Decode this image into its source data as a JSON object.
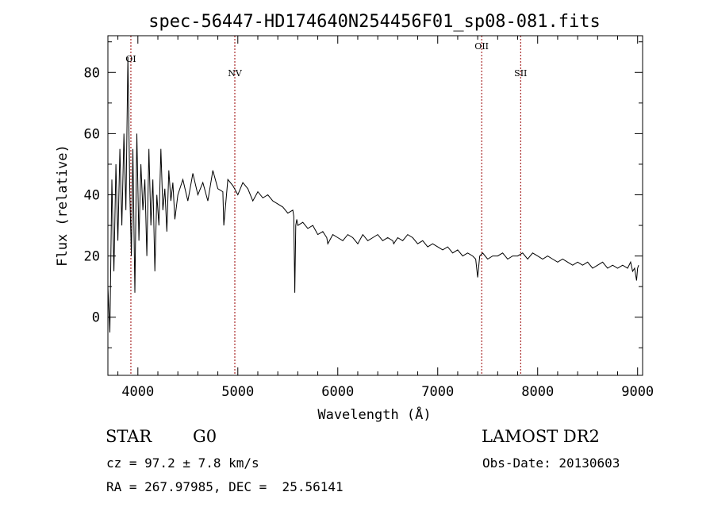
{
  "chart_data": {
    "type": "line",
    "title": "spec-56447-HD174640N254456F01_sp08-081.fits",
    "xlabel": "Wavelength (Å)",
    "ylabel": "Flux (relative)",
    "xlim": [
      3700,
      9050
    ],
    "ylim": [
      -19,
      92
    ],
    "xticks": [
      4000,
      5000,
      6000,
      7000,
      8000,
      9000
    ],
    "yticks": [
      0,
      20,
      40,
      60,
      80
    ],
    "grid": false,
    "line_color": "#000000",
    "marker_color": "#990000",
    "line_markers": [
      {
        "label": "OI",
        "wavelength": 3930
      },
      {
        "label": "NV",
        "wavelength": 4970
      },
      {
        "label": "OII",
        "wavelength": 7440
      },
      {
        "label": "SII",
        "wavelength": 7830
      }
    ],
    "series": [
      {
        "x": [
          3700,
          3720,
          3740,
          3760,
          3780,
          3800,
          3820,
          3840,
          3860,
          3880,
          3900,
          3920,
          3935,
          3950,
          3970,
          3990,
          4010,
          4030,
          4050,
          4070,
          4090,
          4110,
          4130,
          4150,
          4170,
          4190,
          4210,
          4230,
          4250,
          4270,
          4290,
          4310,
          4330,
          4350,
          4370,
          4400,
          4450,
          4500,
          4550,
          4600,
          4650,
          4700,
          4750,
          4800,
          4850,
          4860,
          4900,
          4950,
          5000,
          5050,
          5100,
          5150,
          5200,
          5250,
          5300,
          5350,
          5400,
          5450,
          5500,
          5550,
          5560,
          5570,
          5580,
          5590,
          5600,
          5650,
          5700,
          5750,
          5800,
          5850,
          5890,
          5900,
          5950,
          6000,
          6050,
          6100,
          6150,
          6200,
          6250,
          6300,
          6350,
          6400,
          6450,
          6500,
          6550,
          6560,
          6600,
          6650,
          6700,
          6750,
          6800,
          6850,
          6900,
          6950,
          7000,
          7050,
          7100,
          7150,
          7200,
          7250,
          7300,
          7350,
          7380,
          7400,
          7420,
          7450,
          7500,
          7550,
          7600,
          7650,
          7700,
          7750,
          7800,
          7850,
          7900,
          7950,
          8000,
          8050,
          8100,
          8150,
          8200,
          8250,
          8300,
          8350,
          8400,
          8450,
          8500,
          8550,
          8600,
          8650,
          8700,
          8750,
          8800,
          8850,
          8900,
          8930,
          8950,
          8970,
          8990,
          9000,
          9010
        ],
        "y": [
          10,
          -5,
          45,
          15,
          50,
          25,
          55,
          30,
          60,
          35,
          85,
          40,
          20,
          55,
          8,
          60,
          25,
          50,
          35,
          45,
          20,
          55,
          30,
          45,
          15,
          40,
          30,
          55,
          35,
          42,
          28,
          48,
          38,
          44,
          32,
          40,
          45,
          38,
          47,
          40,
          44,
          38,
          48,
          42,
          41,
          30,
          45,
          43,
          40,
          44,
          42,
          38,
          41,
          39,
          40,
          38,
          37,
          36,
          34,
          35,
          33,
          8,
          30,
          32,
          30,
          31,
          29,
          30,
          27,
          28,
          26,
          24,
          27,
          26,
          25,
          27,
          26,
          24,
          27,
          25,
          26,
          27,
          25,
          26,
          25,
          24,
          26,
          25,
          27,
          26,
          24,
          25,
          23,
          24,
          23,
          22,
          23,
          21,
          22,
          20,
          21,
          20,
          19,
          13,
          20,
          21,
          19,
          20,
          20,
          21,
          19,
          20,
          20,
          21,
          19,
          21,
          20,
          19,
          20,
          19,
          18,
          19,
          18,
          17,
          18,
          17,
          18,
          16,
          17,
          18,
          16,
          17,
          16,
          17,
          16,
          18,
          15,
          16,
          12,
          16,
          17
        ]
      }
    ]
  },
  "footer": {
    "object_class": "STAR",
    "subclass": "G0",
    "survey": "LAMOST DR2",
    "cz": "cz = 97.2 ± 7.8 km/s",
    "obs_date": "Obs-Date: 20130603",
    "coords": "RA = 267.97985, DEC =  25.56141"
  }
}
